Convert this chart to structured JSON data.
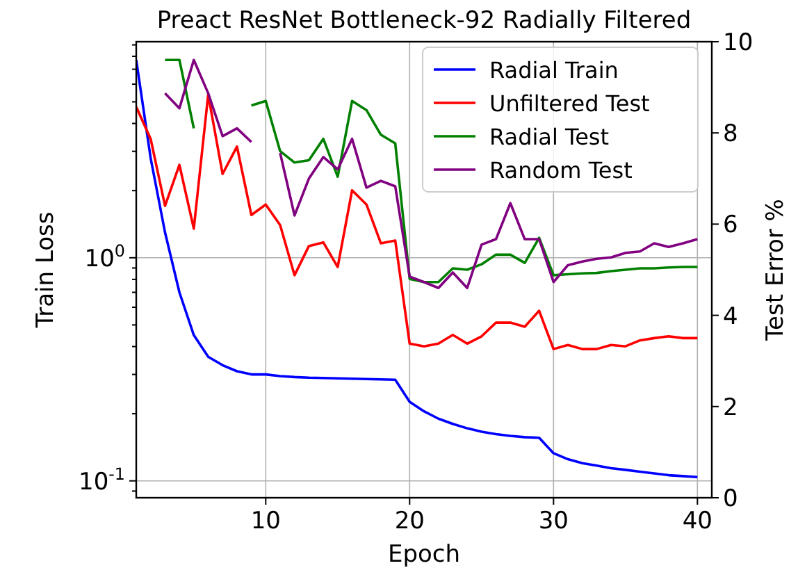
{
  "chart_data": {
    "type": "line",
    "title": "Preact ResNet Bottleneck-92 Radially Filtered",
    "xlabel": "Epoch",
    "ylabel": "Train Loss",
    "y2label": "Test Error %",
    "x": [
      1,
      2,
      3,
      4,
      5,
      6,
      7,
      8,
      9,
      10,
      11,
      12,
      13,
      14,
      15,
      16,
      17,
      18,
      19,
      20,
      21,
      22,
      23,
      24,
      25,
      26,
      27,
      28,
      29,
      30,
      31,
      32,
      33,
      34,
      35,
      36,
      37,
      38,
      39,
      40
    ],
    "xlim": [
      1,
      41
    ],
    "xticks": [
      10,
      20,
      30,
      40
    ],
    "log": "y",
    "ylim": [
      0.084,
      9.3
    ],
    "yticks": [
      {
        "value": 0.09,
        "label": null
      },
      {
        "value": 0.1,
        "label": "10$^{-1}$"
      },
      {
        "value": 0.2,
        "label": null
      },
      {
        "value": 0.3,
        "label": null
      },
      {
        "value": 0.4,
        "label": null
      },
      {
        "value": 0.5,
        "label": null
      },
      {
        "value": 0.6,
        "label": null
      },
      {
        "value": 0.7,
        "label": null
      },
      {
        "value": 0.8,
        "label": null
      },
      {
        "value": 0.9,
        "label": null
      },
      {
        "value": 1,
        "label": "10$^{0}$"
      },
      {
        "value": 2,
        "label": null
      },
      {
        "value": 3,
        "label": null
      },
      {
        "value": 4,
        "label": null
      },
      {
        "value": 5,
        "label": null
      },
      {
        "value": 6,
        "label": null
      },
      {
        "value": 7,
        "label": null
      },
      {
        "value": 8,
        "label": null
      },
      {
        "value": 9,
        "label": null
      }
    ],
    "y2lim": [
      0,
      10
    ],
    "y2ticks": [
      0,
      2,
      4,
      6,
      8,
      10
    ],
    "grid": true,
    "legend": "top right",
    "line_style": "solid",
    "series": [
      {
        "name": "Radial Train",
        "color": "#0000ff",
        "values": [
          7.7,
          2.8,
          1.3,
          0.7,
          0.45,
          0.36,
          0.33,
          0.31,
          0.3,
          0.3,
          0.295,
          0.292,
          0.29,
          0.289,
          0.288,
          0.287,
          0.286,
          0.285,
          0.284,
          0.226,
          0.205,
          0.19,
          0.18,
          0.172,
          0.166,
          0.162,
          0.159,
          0.157,
          0.156,
          0.133,
          0.125,
          0.12,
          0.117,
          0.114,
          0.112,
          0.11,
          0.108,
          0.106,
          0.105,
          0.104
        ]
      },
      {
        "name": "Unfiltered Test",
        "color": "#ff0000",
        "axis": "y2",
        "values": [
          8.57,
          7.87,
          6.4,
          7.3,
          5.9,
          8.84,
          7.1,
          7.7,
          6.2,
          6.43,
          5.98,
          4.88,
          5.52,
          5.6,
          5.06,
          6.74,
          6.43,
          5.58,
          5.64,
          3.38,
          3.32,
          3.38,
          3.57,
          3.38,
          3.54,
          3.84,
          3.84,
          3.75,
          4.1,
          3.26,
          3.35,
          3.26,
          3.26,
          3.35,
          3.32,
          3.45,
          3.5,
          3.54,
          3.5,
          3.5
        ]
      },
      {
        "name": "Radial Test",
        "color": "#008000",
        "axis": "y2",
        "values": [
          null,
          null,
          9.6,
          9.6,
          8.1,
          null,
          null,
          null,
          8.6,
          8.7,
          7.6,
          7.35,
          7.4,
          7.87,
          7.04,
          8.7,
          8.5,
          7.96,
          7.77,
          4.8,
          4.73,
          4.73,
          5.03,
          5.0,
          5.12,
          5.33,
          5.33,
          5.15,
          5.7,
          4.88,
          4.9,
          4.92,
          4.93,
          4.97,
          5.0,
          5.03,
          5.03,
          5.05,
          5.06,
          5.06
        ]
      },
      {
        "name": "Random Test",
        "color": "#800080",
        "axis": "y2",
        "values": [
          null,
          null,
          8.87,
          8.54,
          9.6,
          8.87,
          7.93,
          8.1,
          7.8,
          null,
          7.56,
          6.19,
          7.0,
          7.47,
          7.2,
          7.87,
          6.8,
          6.95,
          6.83,
          4.85,
          4.73,
          4.6,
          4.94,
          4.6,
          5.55,
          5.67,
          6.46,
          5.67,
          5.67,
          4.73,
          5.1,
          5.18,
          5.24,
          5.27,
          5.37,
          5.4,
          5.58,
          5.5,
          5.58,
          5.67
        ]
      }
    ]
  }
}
